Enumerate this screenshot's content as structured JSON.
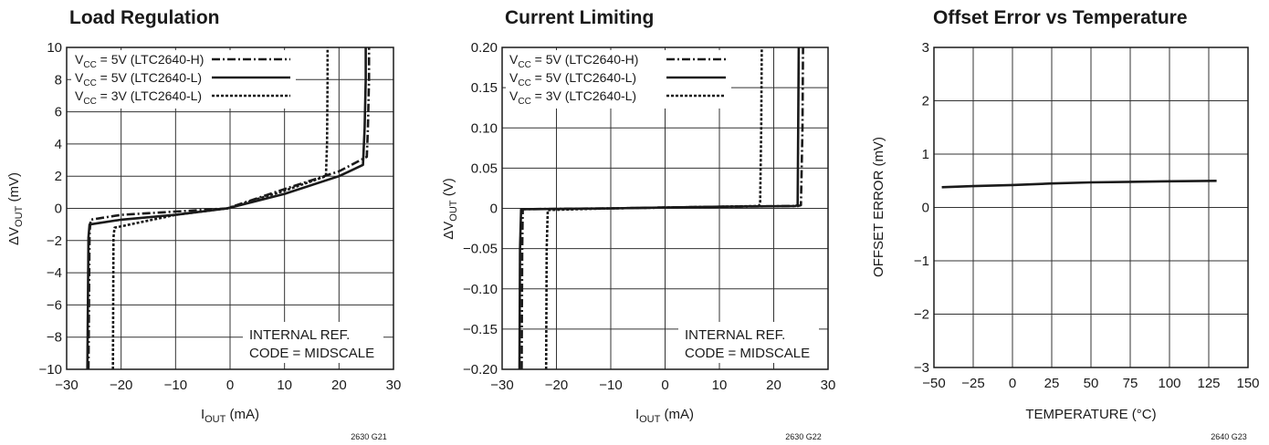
{
  "chart_data": [
    {
      "type": "line",
      "title": "Load Regulation",
      "xlabel": "I",
      "xlabel_sub": "OUT",
      "xlabel_unit": " (mA)",
      "ylabel": "ΔV",
      "ylabel_sub": "OUT",
      "ylabel_unit": " (mV)",
      "xlim": [
        -30,
        30
      ],
      "ylim": [
        -10,
        10
      ],
      "xticks": [
        -30,
        -20,
        -10,
        0,
        10,
        20,
        30
      ],
      "yticks": [
        -10,
        -8,
        -6,
        -4,
        -2,
        0,
        2,
        4,
        6,
        8,
        10
      ],
      "grid": true,
      "legend_placement": "top-left",
      "series": [
        {
          "name_pre": "V",
          "name_sub": "CC",
          "name_post": " = 5V (LTC2640-H)",
          "style": "dashdot",
          "x": [
            -26.0,
            -25.8,
            -25.6,
            -20,
            -10,
            -0.5,
            10,
            20,
            25.1,
            25.3,
            25.5,
            25.5
          ],
          "y": [
            -10,
            -1.5,
            -0.7,
            -0.4,
            -0.2,
            0,
            1.2,
            2.3,
            3.2,
            5,
            8,
            10
          ]
        },
        {
          "name_pre": "V",
          "name_sub": "CC",
          "name_post": " = 5V (LTC2640-L)",
          "style": "solid",
          "x": [
            -26.2,
            -26.0,
            -25.8,
            -20,
            -10,
            -0.5,
            10,
            20,
            24.4,
            24.7,
            24.9,
            24.9
          ],
          "y": [
            -10,
            -1.8,
            -1.0,
            -0.7,
            -0.4,
            0,
            0.9,
            2.0,
            2.7,
            5,
            8,
            10
          ]
        },
        {
          "name_pre": "V",
          "name_sub": "CC",
          "name_post": " = 3V (LTC2640-L)",
          "style": "dotted",
          "x": [
            -21.5,
            -21.4,
            -21.2,
            -10,
            -0.5,
            10,
            17.6,
            17.8,
            17.9,
            17.9
          ],
          "y": [
            -10,
            -1.8,
            -1.2,
            -0.4,
            0,
            1.1,
            2.0,
            4,
            8,
            10
          ]
        }
      ],
      "annotation": [
        "INTERNAL REF.",
        "CODE = MIDSCALE"
      ],
      "figure_code": "2630 G21"
    },
    {
      "type": "line",
      "title": "Current Limiting",
      "xlabel": "I",
      "xlabel_sub": "OUT",
      "xlabel_unit": " (mA)",
      "ylabel": "ΔV",
      "ylabel_sub": "OUT",
      "ylabel_unit": " (V)",
      "xlim": [
        -30,
        30
      ],
      "ylim": [
        -0.2,
        0.2
      ],
      "xticks": [
        -30,
        -20,
        -10,
        0,
        10,
        20,
        30
      ],
      "yticks": [
        -0.2,
        -0.15,
        -0.1,
        -0.05,
        0,
        0.05,
        0.1,
        0.15,
        0.2
      ],
      "ytick_labels": [
        "−0.20",
        "−0.15",
        "−0.10",
        "−0.05",
        "0",
        "0.05",
        "0.10",
        "0.15",
        "0.20"
      ],
      "grid": true,
      "legend_placement": "top-left",
      "series": [
        {
          "name_pre": "V",
          "name_sub": "CC",
          "name_post": " = 5V (LTC2640-H)",
          "style": "dashdot",
          "x": [
            -26.4,
            -26.3,
            -26.2,
            -10,
            0,
            10,
            24.5,
            25.0,
            25.3,
            25.4
          ],
          "y": [
            -0.2,
            -0.05,
            -0.001,
            0.0,
            0.001,
            0.002,
            0.003,
            0.004,
            0.1,
            0.2
          ]
        },
        {
          "name_pre": "V",
          "name_sub": "CC",
          "name_post": " = 5V (LTC2640-L)",
          "style": "solid",
          "x": [
            -26.8,
            -26.7,
            -26.5,
            -10,
            0,
            10,
            24.0,
            24.4,
            24.5,
            24.6
          ],
          "y": [
            -0.2,
            -0.05,
            -0.001,
            0.0,
            0.001,
            0.002,
            0.003,
            0.004,
            0.1,
            0.2
          ]
        },
        {
          "name_pre": "V",
          "name_sub": "CC",
          "name_post": " = 3V (LTC2640-L)",
          "style": "dotted",
          "x": [
            -21.9,
            -21.8,
            -21.6,
            -10,
            0,
            10,
            17.2,
            17.5,
            17.7,
            17.8
          ],
          "y": [
            -0.2,
            -0.05,
            -0.002,
            0.0,
            0.001,
            0.002,
            0.003,
            0.005,
            0.1,
            0.2
          ]
        }
      ],
      "annotation": [
        "INTERNAL REF.",
        "CODE = MIDSCALE"
      ],
      "figure_code": "2630 G22"
    },
    {
      "type": "line",
      "title": "Offset Error vs Temperature",
      "xlabel": "TEMPERATURE (°C)",
      "ylabel": "OFFSET ERROR (mV)",
      "xlim": [
        -50,
        150
      ],
      "ylim": [
        -3,
        3
      ],
      "xticks": [
        -50,
        -25,
        0,
        25,
        50,
        75,
        100,
        125,
        150
      ],
      "yticks": [
        -3,
        -2,
        -1,
        0,
        1,
        2,
        3
      ],
      "grid": true,
      "series": [
        {
          "style": "solid",
          "x": [
            -45,
            -25,
            0,
            25,
            50,
            75,
            100,
            130
          ],
          "y": [
            0.38,
            0.4,
            0.42,
            0.45,
            0.47,
            0.48,
            0.49,
            0.5
          ]
        }
      ],
      "figure_code": "2640 G23"
    }
  ]
}
